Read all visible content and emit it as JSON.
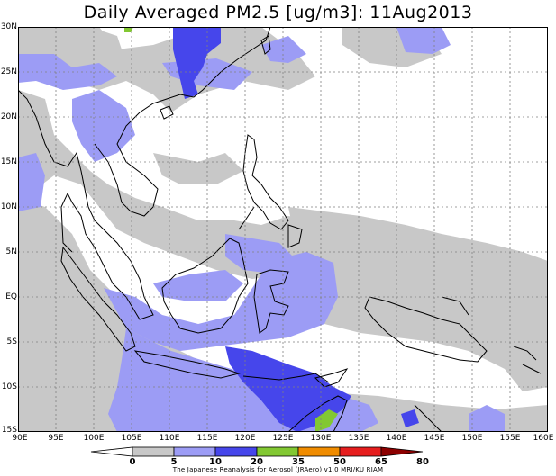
{
  "title": "Daily Averaged PM2.5 [ug/m3]: 11Aug2013",
  "lat_labels": [
    "30N",
    "25N",
    "20N",
    "15N",
    "10N",
    "5N",
    "EQ",
    "5S",
    "10S",
    "15S"
  ],
  "lon_labels": [
    "90E",
    "95E",
    "100E",
    "105E",
    "110E",
    "115E",
    "120E",
    "125E",
    "130E",
    "135E",
    "140E",
    "145E",
    "150E",
    "155E",
    "160E"
  ],
  "colorbar": {
    "levels": [
      "0",
      "5",
      "10",
      "20",
      "35",
      "50",
      "65",
      "80"
    ],
    "colors": [
      "#ffffff",
      "#c8c8c8",
      "#9c9cf5",
      "#4646eb",
      "#82c832",
      "#f08c00",
      "#e61e1e",
      "#8c0000"
    ]
  },
  "credit": "The Japanese Reanalysis for Aerosol (JRAero) v1.0 MRI/KU RIAM"
}
